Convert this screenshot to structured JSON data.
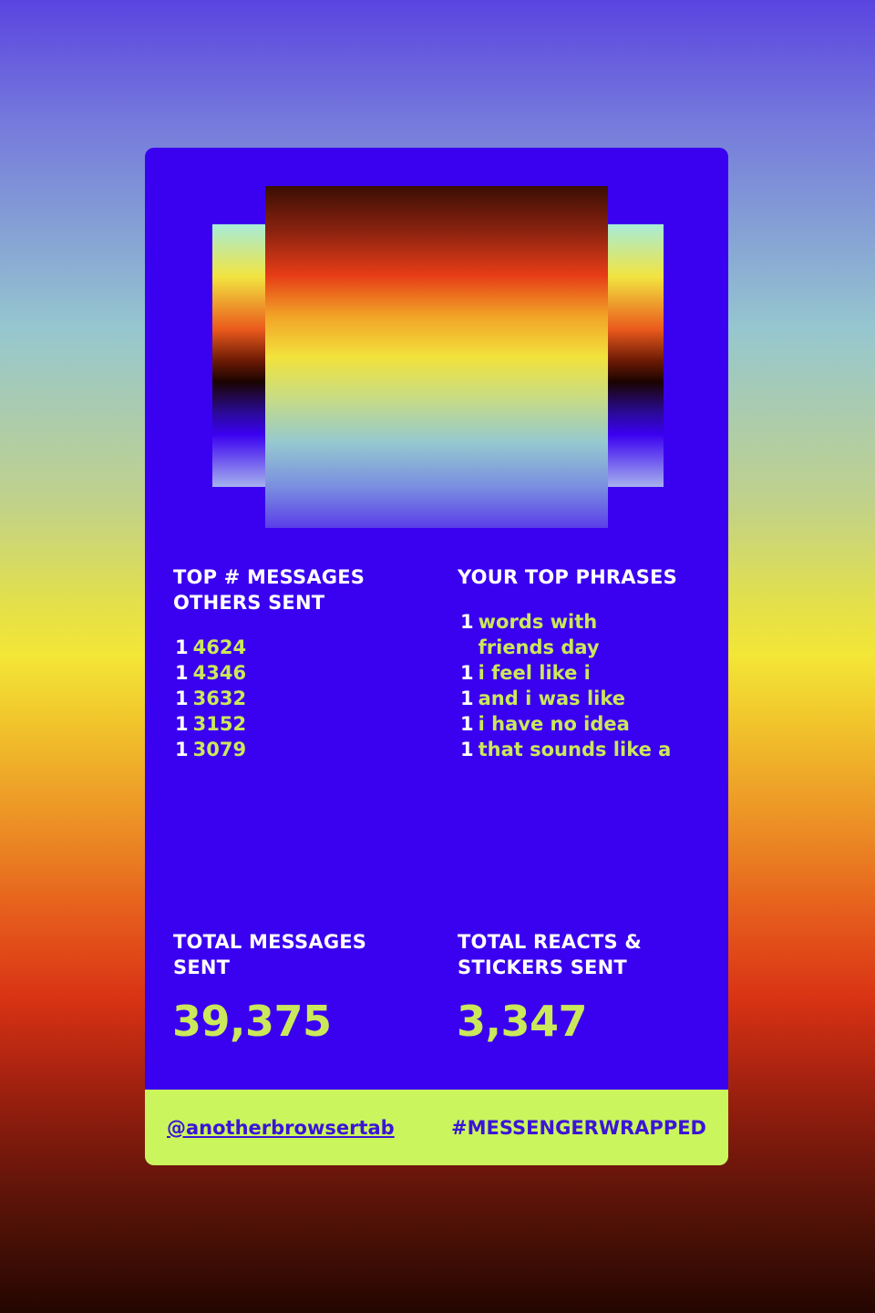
{
  "card": {
    "top_messages": {
      "heading_line1": "TOP # MESSAGES",
      "heading_line2": "OTHERS SENT",
      "items": [
        {
          "rank": "1",
          "value": "4624"
        },
        {
          "rank": "1",
          "value": "4346"
        },
        {
          "rank": "1",
          "value": "3632"
        },
        {
          "rank": "1",
          "value": "3152"
        },
        {
          "rank": "1",
          "value": "3079"
        }
      ]
    },
    "top_phrases": {
      "heading": "YOUR TOP PHRASES",
      "items": [
        {
          "rank": "1",
          "value": "words with friends day"
        },
        {
          "rank": "1",
          "value": "i feel like i"
        },
        {
          "rank": "1",
          "value": "and i was like"
        },
        {
          "rank": "1",
          "value": "i have no idea"
        },
        {
          "rank": "1",
          "value": "that sounds like a"
        }
      ]
    },
    "total_messages": {
      "heading_line1": "TOTAL MESSAGES",
      "heading_line2": "SENT",
      "value": "39,375"
    },
    "total_reacts": {
      "heading_line1": "TOTAL REACTS &",
      "heading_line2": "STICKERS SENT",
      "value": "3,347"
    },
    "footer": {
      "handle": "@anotherbrowsertab",
      "hashtag": "#MESSENGERWRAPPED"
    }
  },
  "colors": {
    "card_bg": "#3a00f0",
    "accent": "#cbe85a",
    "footer_bg": "#cbf55d",
    "footer_text": "#3a14d8"
  }
}
